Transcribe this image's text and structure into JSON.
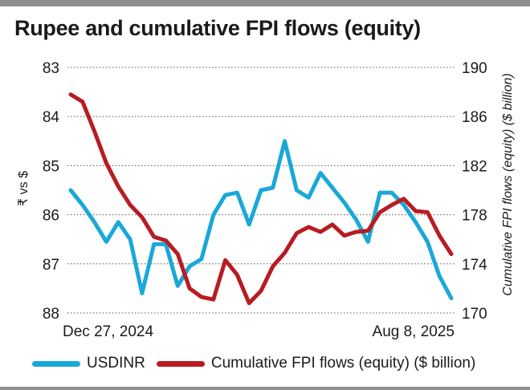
{
  "title": "Rupee and cumulative FPI flows (equity)",
  "colors": {
    "usdinr": "#1aa8d8",
    "fpi": "#b81c22",
    "grid": "#555555"
  },
  "chart_data": {
    "type": "line",
    "title": "Rupee and cumulative FPI flows (equity)",
    "ylabel_left": "₹ vs $",
    "ylabel_right": "Cumulative FPI flows (equity) ($ billion)",
    "x_tick_labels": [
      "Dec 27, 2024",
      "Aug 8, 2025"
    ],
    "y_left": {
      "ticks": [
        83,
        84,
        85,
        86,
        87,
        88
      ],
      "ylim": [
        83,
        88
      ],
      "inverted": true
    },
    "y_right": {
      "ticks": [
        190,
        186,
        182,
        178,
        174,
        170
      ],
      "ylim": [
        170,
        190
      ]
    },
    "grid": "horizontal dotted",
    "legend_position": "bottom",
    "series": [
      {
        "name": "USDINR",
        "axis": "left",
        "values": [
          85.5,
          85.8,
          86.15,
          86.55,
          86.15,
          86.5,
          87.6,
          86.6,
          86.6,
          87.45,
          87.05,
          86.9,
          86.0,
          85.6,
          85.55,
          86.2,
          85.5,
          85.45,
          84.5,
          85.5,
          85.65,
          85.15,
          85.45,
          85.75,
          86.1,
          86.55,
          85.55,
          85.55,
          85.8,
          86.15,
          86.55,
          87.25,
          87.7
        ]
      },
      {
        "name": "Cumulative FPI flows (equity) ($ billion)",
        "axis": "right",
        "values": [
          187.8,
          187.2,
          184.8,
          182.2,
          180.3,
          178.8,
          177.8,
          176.2,
          175.9,
          174.8,
          172.0,
          171.3,
          171.1,
          174.3,
          173.1,
          170.8,
          171.8,
          173.8,
          174.9,
          176.5,
          177.0,
          176.6,
          177.2,
          176.3,
          176.6,
          176.7,
          178.2,
          178.8,
          179.3,
          178.3,
          178.2,
          176.3,
          174.8
        ]
      }
    ]
  },
  "legend": {
    "usdinr_label": "USDINR",
    "fpi_label": "Cumulative FPI flows (equity) ($ billion)"
  }
}
